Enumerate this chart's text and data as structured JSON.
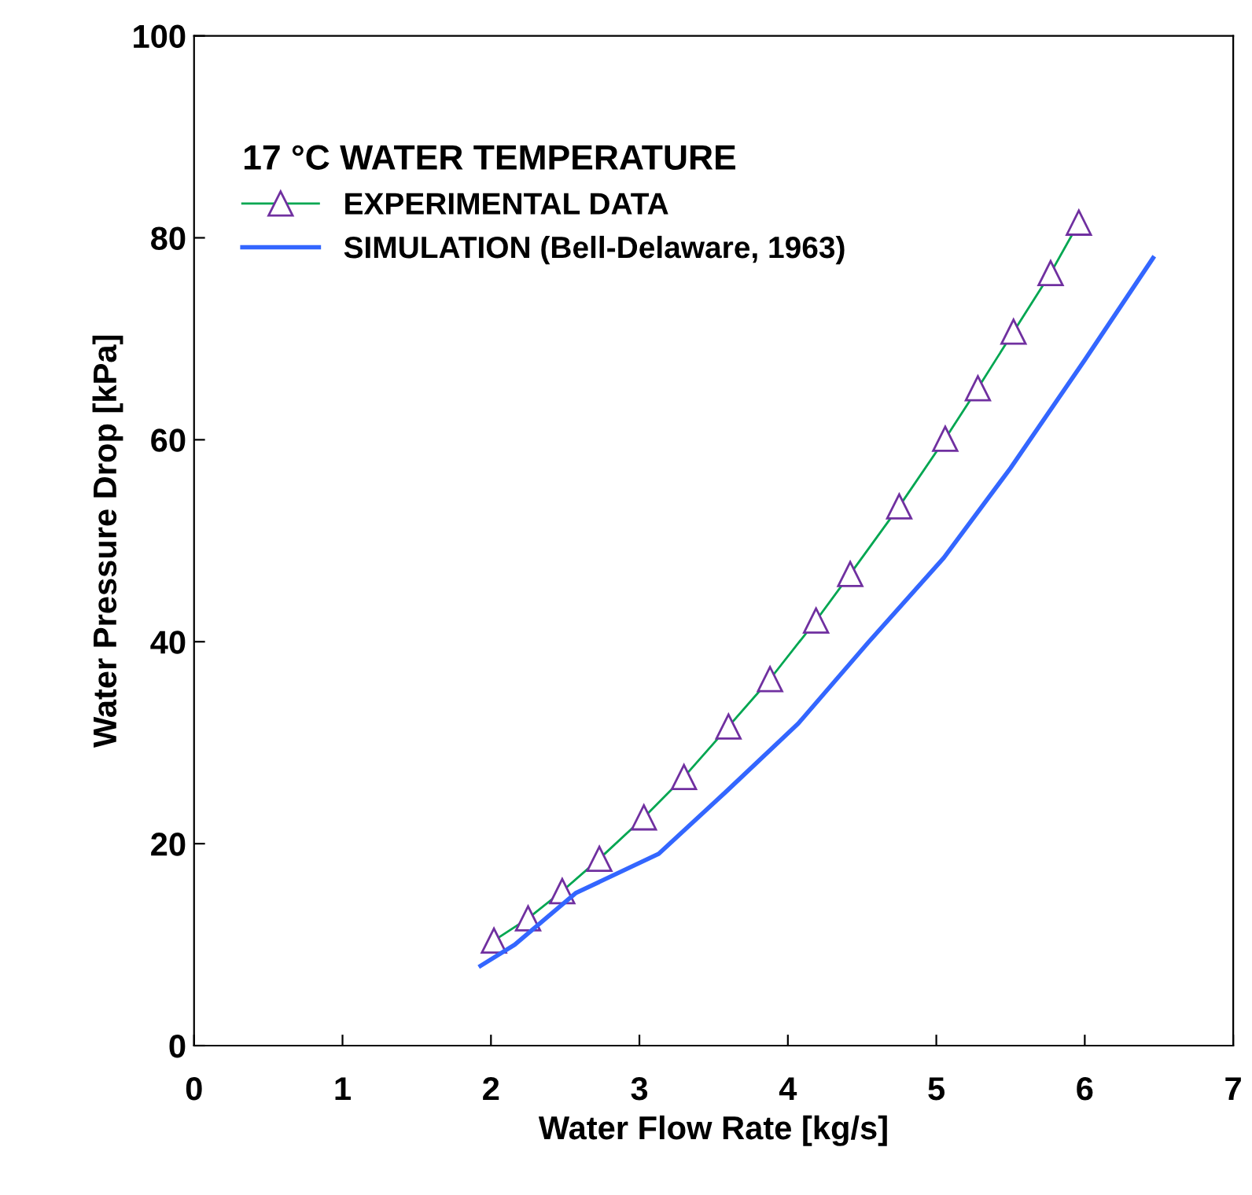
{
  "chart_data": {
    "type": "line",
    "xlabel": "Water Flow Rate [kg/s]",
    "ylabel": "Water Pressure Drop [kPa]",
    "legend_title": "17 °C WATER TEMPERATURE",
    "legend": "top left",
    "grid": false,
    "xlim": [
      0,
      7
    ],
    "xticks": [
      0,
      1,
      2,
      3,
      4,
      5,
      6,
      7
    ],
    "ylim": [
      0,
      100
    ],
    "yticks": [
      0,
      20,
      40,
      60,
      80,
      100
    ],
    "series": [
      {
        "name": "EXPERIMENTAL DATA",
        "color": "#00a651",
        "marker": "triangle",
        "x": [
          2.02,
          2.25,
          2.48,
          2.73,
          3.03,
          3.3,
          3.6,
          3.88,
          4.19,
          4.42,
          4.75,
          5.06,
          5.28,
          5.52,
          5.77,
          5.96
        ],
        "values": [
          10.4,
          12.6,
          15.3,
          18.5,
          22.6,
          26.6,
          31.6,
          36.3,
          42.1,
          46.7,
          53.4,
          60.1,
          65.1,
          70.7,
          76.5,
          81.5
        ]
      },
      {
        "name": "SIMULATION (Bell-Delaware, 1963)",
        "color": "#3366ff",
        "marker": "none",
        "x": [
          1.93,
          2.16,
          2.57,
          3.13,
          3.58,
          4.07,
          4.54,
          5.05,
          5.5,
          6.0,
          6.46
        ],
        "values": [
          7.9,
          10.0,
          15.1,
          19.0,
          25.1,
          31.9,
          39.9,
          48.3,
          57.2,
          67.9,
          78.0
        ]
      }
    ]
  }
}
